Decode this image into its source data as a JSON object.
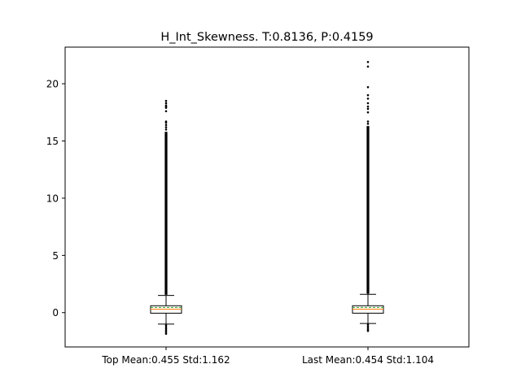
{
  "chart_data": {
    "type": "box",
    "title": "H_Int_Skewness. T:0.8136, P:0.4159",
    "categories": [
      "Top Mean:0.455 Std:1.162",
      "Last Mean:0.454 Std:1.104"
    ],
    "xlabel": "",
    "ylabel": "",
    "ylim": [
      -3.0,
      23.2
    ],
    "yticks": [
      0,
      5,
      10,
      15,
      20
    ],
    "grid": false,
    "colors": {
      "box": "#000000",
      "median": "#ff7f0e",
      "mean": "#2ca02c",
      "fliers": "#000000"
    },
    "series": [
      {
        "whisker_low": -1.0,
        "q1": -0.05,
        "median": 0.3,
        "mean": 0.455,
        "q3": 0.6,
        "whisker_high": 1.5,
        "fliers_low": [
          -1.1,
          -1.25,
          -1.4,
          -1.55,
          -1.7,
          -1.85
        ],
        "fliers_high_dense_to": 15.8,
        "fliers_high": [
          16.0,
          16.2,
          16.4,
          16.6,
          16.7,
          17.6,
          17.9,
          18.0,
          18.1,
          18.3,
          18.5
        ]
      },
      {
        "whisker_low": -0.95,
        "q1": -0.05,
        "median": 0.3,
        "mean": 0.454,
        "q3": 0.6,
        "whisker_high": 1.6,
        "fliers_low": [
          -1.05,
          -1.2,
          -1.35,
          -1.5,
          -1.6
        ],
        "fliers_high_dense_to": 16.3,
        "fliers_high": [
          16.5,
          16.7,
          17.5,
          17.8,
          18.0,
          18.3,
          18.7,
          19.0,
          19.7,
          21.5,
          21.9
        ]
      }
    ]
  }
}
